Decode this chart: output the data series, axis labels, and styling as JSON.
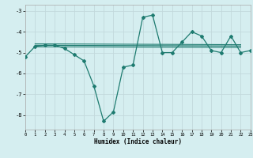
{
  "xlabel": "Humidex (Indice chaleur)",
  "background_color": "#d5eef0",
  "grid_color": "#c2d9dc",
  "line_color": "#1e7b70",
  "xlim": [
    0,
    23
  ],
  "ylim": [
    -8.7,
    -2.7
  ],
  "yticks": [
    -8,
    -7,
    -6,
    -5,
    -4,
    -3
  ],
  "xticks": [
    0,
    1,
    2,
    3,
    4,
    5,
    6,
    7,
    8,
    9,
    10,
    11,
    12,
    13,
    14,
    15,
    16,
    17,
    18,
    19,
    20,
    21,
    22,
    23
  ],
  "main_y": [
    -5.2,
    -4.7,
    -4.65,
    -4.65,
    -4.8,
    -5.1,
    -5.4,
    -6.6,
    -8.3,
    -7.85,
    -5.7,
    -5.6,
    -3.3,
    -3.2,
    -5.0,
    -5.0,
    -4.5,
    -4.0,
    -4.2,
    -4.9,
    -5.0,
    -4.2,
    -5.0,
    -4.9
  ],
  "flat_lines": [
    {
      "x": [
        1,
        22
      ],
      "y": [
        -4.58,
        -4.62
      ]
    },
    {
      "x": [
        1,
        22
      ],
      "y": [
        -4.65,
        -4.68
      ]
    },
    {
      "x": [
        1,
        22
      ],
      "y": [
        -4.72,
        -4.75
      ]
    }
  ]
}
